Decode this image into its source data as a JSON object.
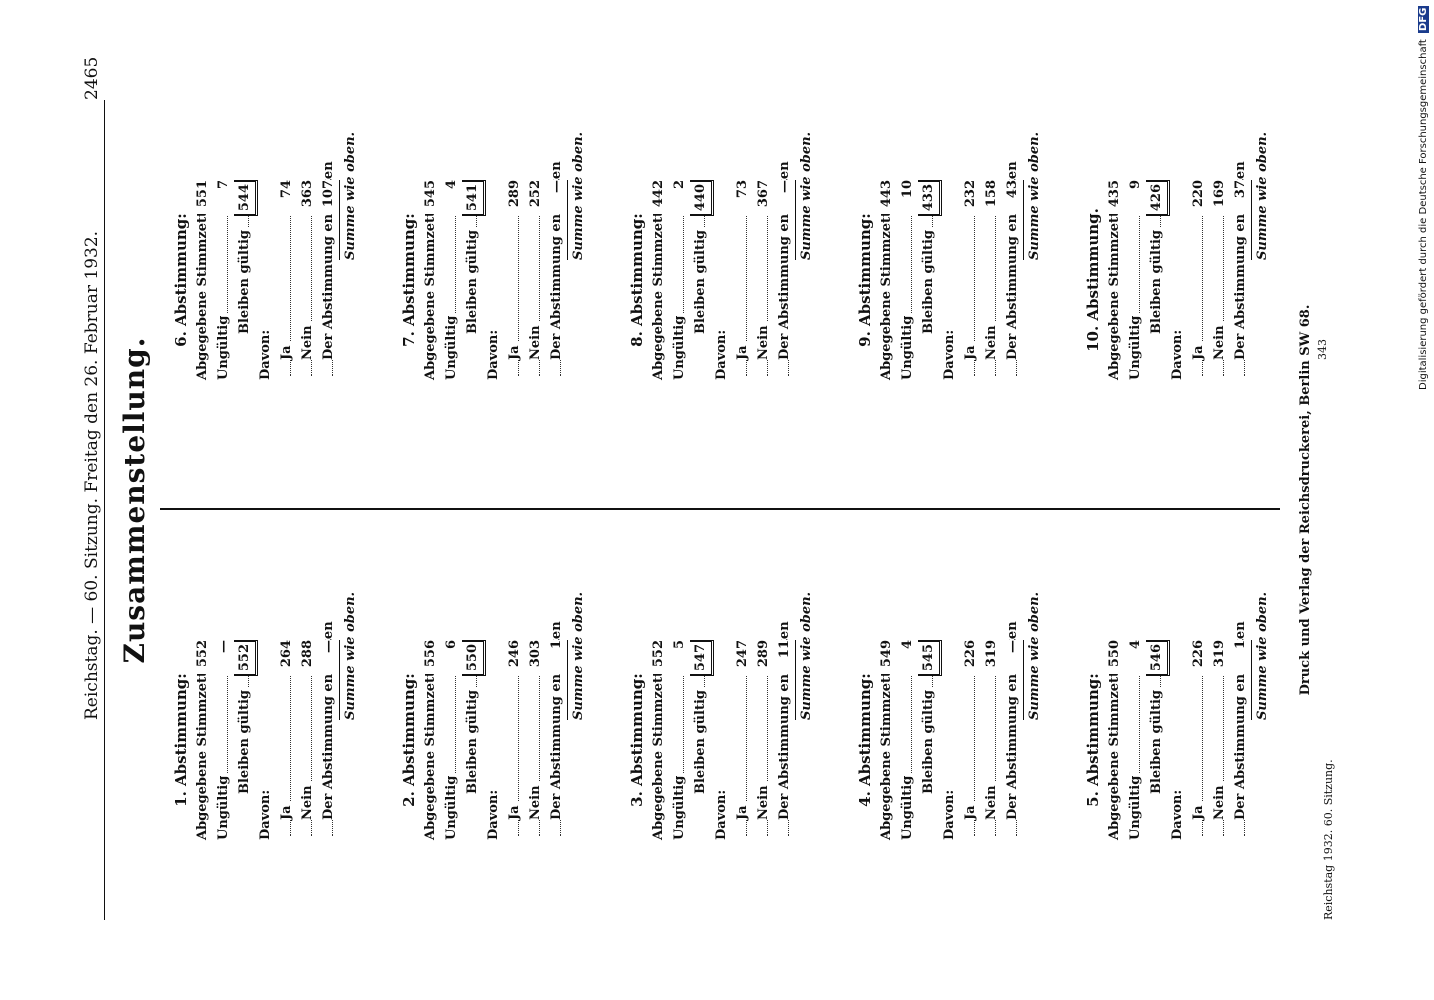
{
  "header": {
    "left": "Reichstag. — 60. Sitzung. Freitag den 26. Februar 1932.",
    "page_number": "2465"
  },
  "title": "Zusammenstellung.",
  "footer": "Druck und Verlag der Reichsdruckerei, Berlin SW 68.",
  "bottom_note": "Reichstag 1932. 60. Sitzung.",
  "bottom_number": "343",
  "digitization_note": "Digitalisierung gefördert durch die Deutsche Forschungsgemeinschaft",
  "dfg_logo": "DFG",
  "labels": {
    "abgegebene": "Abgegebene Stimmzettel",
    "ungueltig": "Ungültig",
    "bleiben": "Bleiben gültig",
    "davon": "Davon:",
    "ja": "Ja",
    "nein": "Nein",
    "enthalten": "Der Abstimmung enthalten",
    "summe": "Summe wie oben."
  },
  "votes": [
    {
      "title": "1. Abstimmung:",
      "abgegeben": "552",
      "ungueltig": "—",
      "gueltig": "552",
      "ja": "264",
      "nein": "288",
      "enthalten": "—"
    },
    {
      "title": "2. Abstimmung:",
      "abgegeben": "556",
      "ungueltig": "6",
      "gueltig": "550",
      "ja": "246",
      "nein": "303",
      "enthalten": "1"
    },
    {
      "title": "3. Abstimmung:",
      "abgegeben": "552",
      "ungueltig": "5",
      "gueltig": "547",
      "ja": "247",
      "nein": "289",
      "enthalten": "11"
    },
    {
      "title": "4. Abstimmung:",
      "abgegeben": "549",
      "ungueltig": "4",
      "gueltig": "545",
      "ja": "226",
      "nein": "319",
      "enthalten": "—"
    },
    {
      "title": "5. Abstimmung:",
      "abgegeben": "550",
      "ungueltig": "4",
      "gueltig": "546",
      "ja": "226",
      "nein": "319",
      "enthalten": "1"
    },
    {
      "title": "6. Abstimmung:",
      "abgegeben": "551",
      "ungueltig": "7",
      "gueltig": "544",
      "ja": "74",
      "nein": "363",
      "enthalten": "107"
    },
    {
      "title": "7. Abstimmung:",
      "abgegeben": "545",
      "ungueltig": "4",
      "gueltig": "541",
      "ja": "289",
      "nein": "252",
      "enthalten": "—"
    },
    {
      "title": "8. Abstimmung:",
      "abgegeben": "442",
      "ungueltig": "2",
      "gueltig": "440",
      "ja": "73",
      "nein": "367",
      "enthalten": "—"
    },
    {
      "title": "9. Abstimmung:",
      "abgegeben": "443",
      "ungueltig": "10",
      "gueltig": "433",
      "ja": "232",
      "nein": "158",
      "enthalten": "43"
    },
    {
      "title": "10. Abstimmung.",
      "abgegeben": "435",
      "ungueltig": "9",
      "gueltig": "426",
      "ja": "220",
      "nein": "169",
      "enthalten": "37"
    }
  ]
}
